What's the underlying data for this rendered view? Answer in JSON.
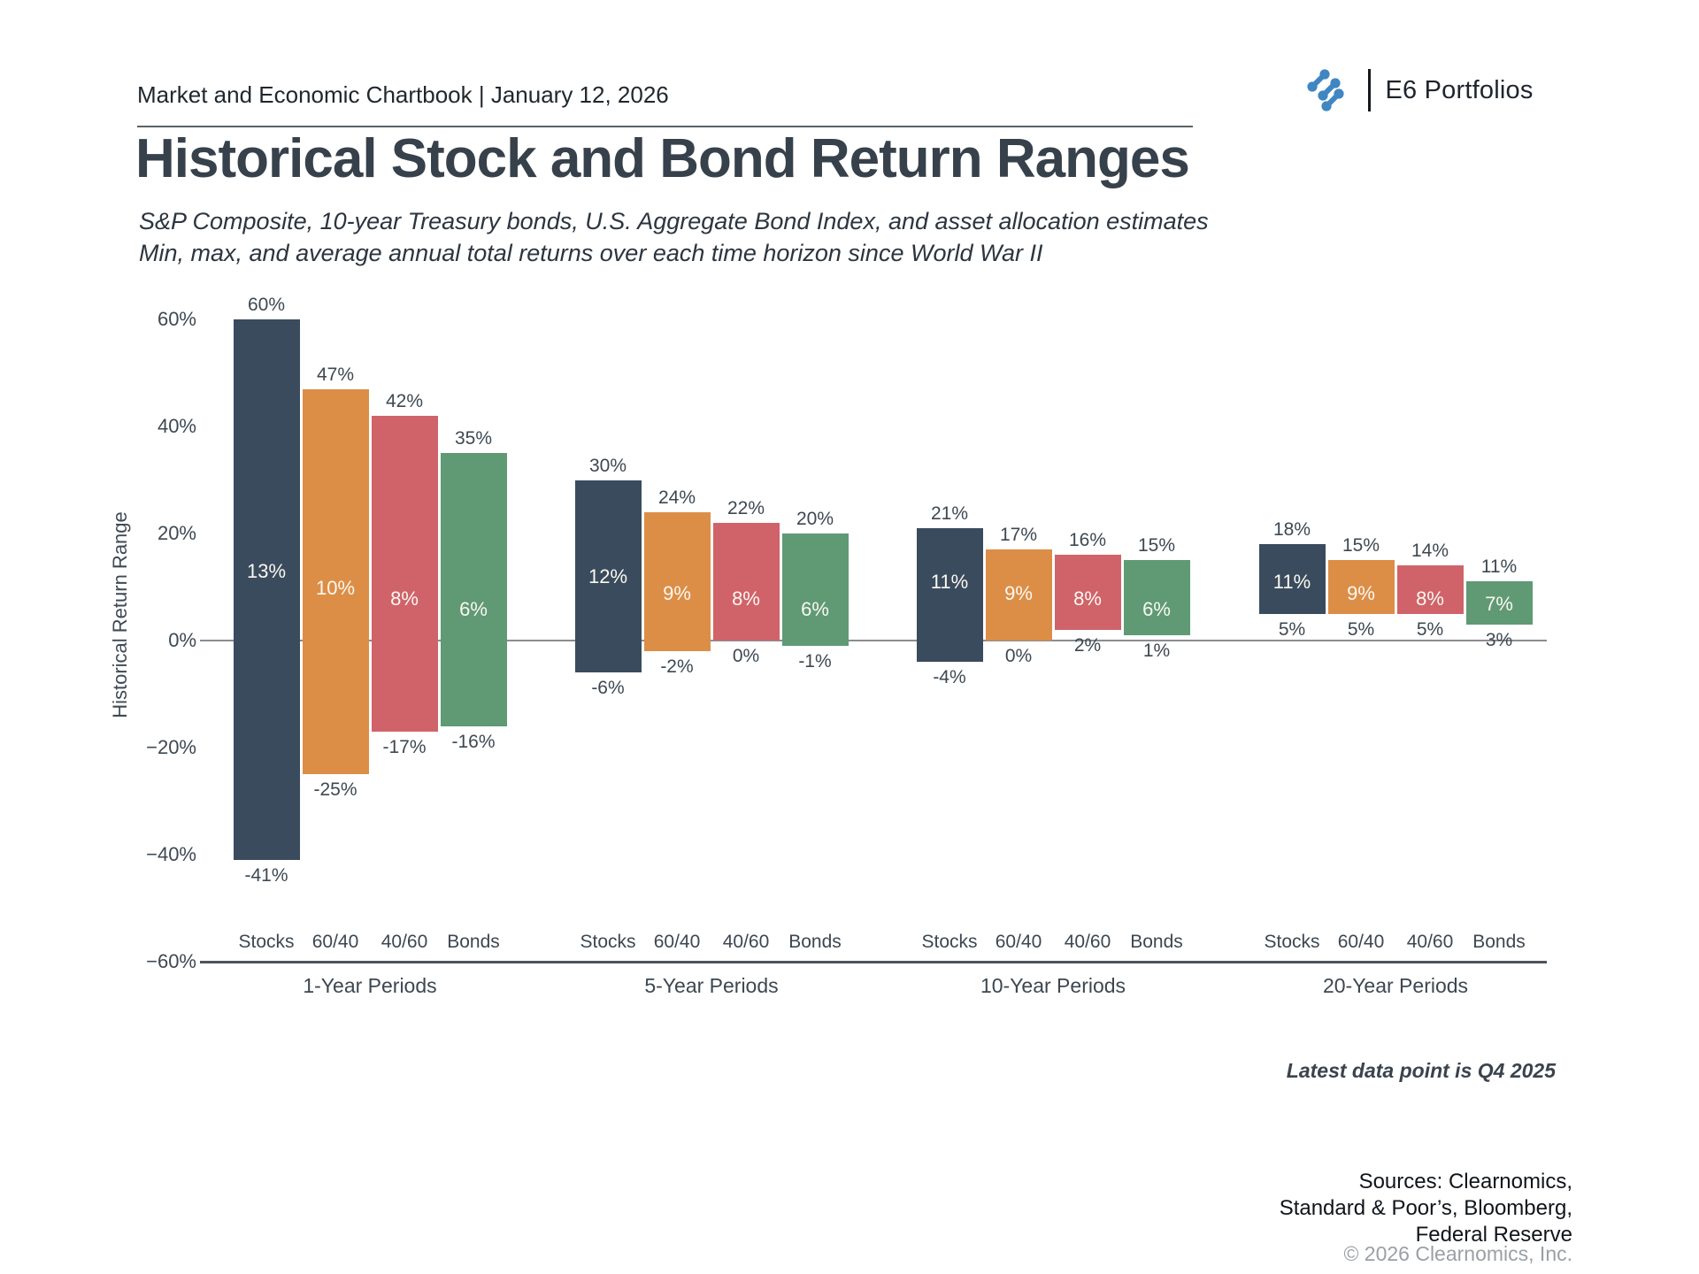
{
  "header": {
    "chartbook": "Market and Economic Chartbook | January 12, 2026",
    "brand": "E6 Portfolios"
  },
  "title": "Historical Stock and Bond Return Ranges",
  "subtitle": {
    "line1": "S&P Composite, 10-year Treasury bonds, U.S. Aggregate Bond Index, and asset allocation estimates",
    "line2": "Min, max, and average annual total returns over each time horizon since World War II"
  },
  "footnote": "Latest data point is Q4 2025",
  "sources": [
    "Sources: Clearnomics,",
    "Standard & Poor’s, Bloomberg,",
    "Federal Reserve"
  ],
  "copyright": "© 2026 Clearnomics, Inc.",
  "logo_color": "#3f86c2",
  "chart_data": {
    "type": "bar",
    "subtype": "floating-range-min-max-avg",
    "title": "",
    "ylabel": "Historical Return Range",
    "ylim": [
      -60,
      60
    ],
    "yticks": [
      60,
      40,
      20,
      0,
      -20,
      -40,
      -60
    ],
    "ytick_suffix": "%",
    "grid": false,
    "legend": "none",
    "series": [
      "Stocks",
      "60/40",
      "40/60",
      "Bonds"
    ],
    "series_colors": {
      "Stocks": "#3a4b5d",
      "60/40": "#dc8e47",
      "40/60": "#d0636a",
      "Bonds": "#5f9a74"
    },
    "groups": [
      {
        "label": "1-Year Periods",
        "bars": [
          {
            "series": "Stocks",
            "max": 60,
            "avg": 13,
            "min": -41
          },
          {
            "series": "60/40",
            "max": 47,
            "avg": 10,
            "min": -25
          },
          {
            "series": "40/60",
            "max": 42,
            "avg": 8,
            "min": -17
          },
          {
            "series": "Bonds",
            "max": 35,
            "avg": 6,
            "min": -16
          }
        ]
      },
      {
        "label": "5-Year Periods",
        "bars": [
          {
            "series": "Stocks",
            "max": 30,
            "avg": 12,
            "min": -6
          },
          {
            "series": "60/40",
            "max": 24,
            "avg": 9,
            "min": -2
          },
          {
            "series": "40/60",
            "max": 22,
            "avg": 8,
            "min": 0
          },
          {
            "series": "Bonds",
            "max": 20,
            "avg": 6,
            "min": -1
          }
        ]
      },
      {
        "label": "10-Year Periods",
        "bars": [
          {
            "series": "Stocks",
            "max": 21,
            "avg": 11,
            "min": -4
          },
          {
            "series": "60/40",
            "max": 17,
            "avg": 9,
            "min": 0
          },
          {
            "series": "40/60",
            "max": 16,
            "avg": 8,
            "min": 2
          },
          {
            "series": "Bonds",
            "max": 15,
            "avg": 6,
            "min": 1
          }
        ]
      },
      {
        "label": "20-Year Periods",
        "bars": [
          {
            "series": "Stocks",
            "max": 18,
            "avg": 11,
            "min": 5
          },
          {
            "series": "60/40",
            "max": 15,
            "avg": 9,
            "min": 5
          },
          {
            "series": "40/60",
            "max": 14,
            "avg": 8,
            "min": 5
          },
          {
            "series": "Bonds",
            "max": 11,
            "avg": 7,
            "min": 3
          }
        ]
      }
    ]
  }
}
